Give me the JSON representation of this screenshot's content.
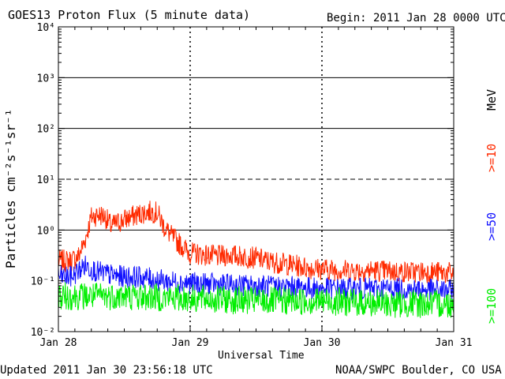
{
  "chart_data": {
    "type": "line",
    "title": "GOES13 Proton Flux (5 minute data)",
    "begin_label": "Begin: 2011 Jan 28 0000 UTC",
    "xlabel": "Universal Time",
    "ylabel": "Particles cm⁻²s⁻¹sr⁻¹",
    "y_scale": "log",
    "ylim": [
      0.01,
      10000
    ],
    "y_tick_labels": [
      "10⁻²",
      "10⁻¹",
      "10⁰",
      "10¹",
      "10²",
      "10³",
      "10⁴"
    ],
    "y_tick_values": [
      0.01,
      0.1,
      1,
      10,
      100,
      1000,
      10000
    ],
    "x_range_days": [
      0,
      3
    ],
    "x_tick_labels": [
      "Jan 28",
      "Jan 29",
      "Jan 30",
      "Jan 31"
    ],
    "x_tick_days": [
      0,
      1,
      2,
      3
    ],
    "unit_label": "MeV",
    "grid": "solid lines at 10⁰, 10², 10³; dashed at 10¹",
    "legend_placement": "right, vertical",
    "series": [
      {
        "name": ">=10",
        "color": "#ff2a00",
        "x_days": [
          0.0,
          0.1,
          0.15,
          0.2,
          0.25,
          0.3,
          0.35,
          0.4,
          0.5,
          0.55,
          0.6,
          0.65,
          0.7,
          0.75,
          0.8,
          0.85,
          0.9,
          0.95,
          1.0,
          1.1,
          1.2,
          1.3,
          1.4,
          1.5,
          1.6,
          1.7,
          1.8,
          1.9,
          2.0,
          2.2,
          2.4,
          2.6,
          2.8,
          3.0
        ],
        "values": [
          0.25,
          0.25,
          0.3,
          0.6,
          1.8,
          2.0,
          1.9,
          1.2,
          1.6,
          1.8,
          2.0,
          2.2,
          2.3,
          2.2,
          1.2,
          0.8,
          0.6,
          0.45,
          0.35,
          0.33,
          0.3,
          0.32,
          0.3,
          0.28,
          0.24,
          0.22,
          0.2,
          0.18,
          0.17,
          0.16,
          0.16,
          0.15,
          0.15,
          0.14
        ]
      },
      {
        "name": ">=50",
        "color": "#1010ff",
        "x_days": [
          0.0,
          0.1,
          0.2,
          0.3,
          0.4,
          0.5,
          0.6,
          0.7,
          0.8,
          1.0,
          1.2,
          1.5,
          1.8,
          2.0,
          2.5,
          3.0
        ],
        "values": [
          0.12,
          0.12,
          0.2,
          0.15,
          0.13,
          0.12,
          0.12,
          0.11,
          0.1,
          0.09,
          0.085,
          0.08,
          0.075,
          0.07,
          0.07,
          0.065
        ]
      },
      {
        "name": ">=100",
        "color": "#00ee00",
        "x_days": [
          0.0,
          0.5,
          1.0,
          1.5,
          2.0,
          2.5,
          3.0
        ],
        "values": [
          0.05,
          0.05,
          0.045,
          0.04,
          0.04,
          0.035,
          0.035
        ]
      }
    ]
  },
  "footer": {
    "updated": "Updated 2011 Jan 30 23:56:18 UTC",
    "source": "NOAA/SWPC Boulder, CO USA"
  }
}
